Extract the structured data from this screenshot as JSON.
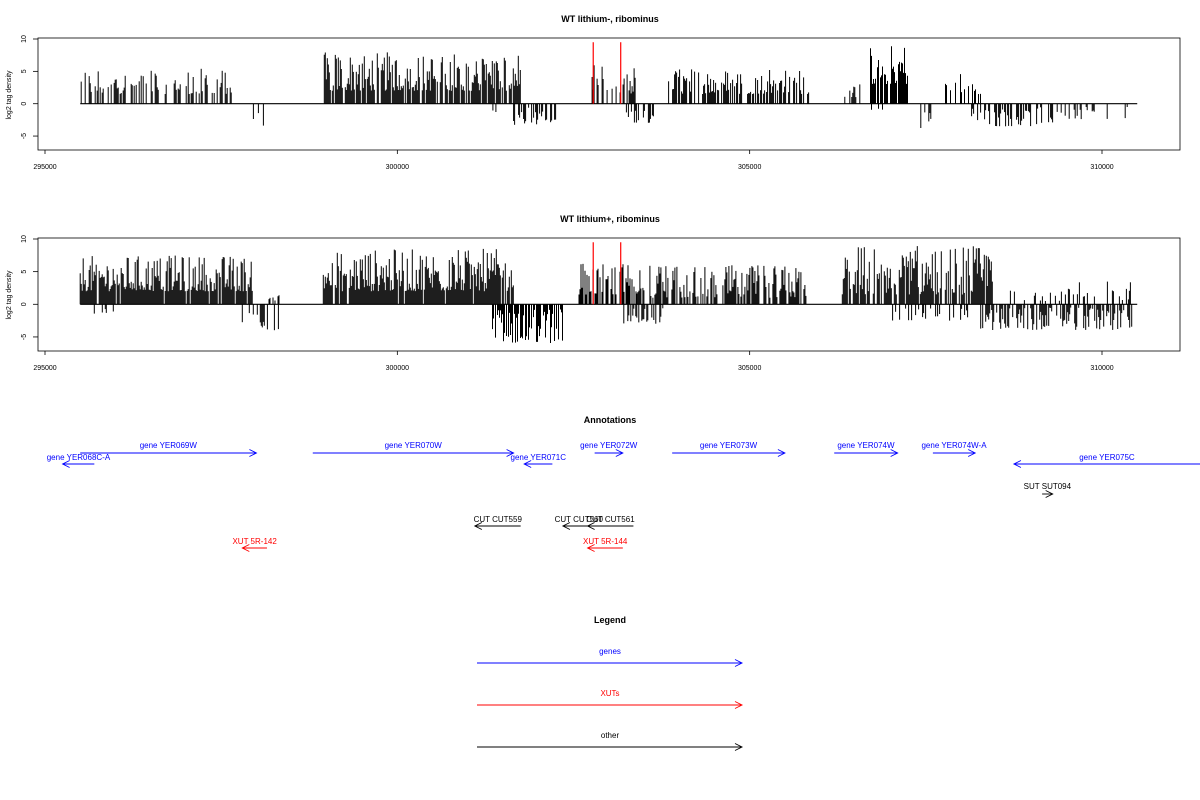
{
  "colors": {
    "gene": "#0000ff",
    "xut": "#ff0000",
    "other": "#000000",
    "highlight": "#ff0000",
    "signal": "#000000"
  },
  "xaxis": {
    "range": [
      295000,
      310500
    ],
    "ticks": [
      295000,
      300000,
      305000,
      310000
    ],
    "tick_labels": [
      "295000",
      "300000",
      "305000",
      "310000"
    ]
  },
  "chart_data": [
    {
      "type": "bar",
      "title": "WT lithium-, ribominus",
      "ylabel": "log2 tag density",
      "ylim": [
        -7,
        10
      ],
      "yticks": [
        -5,
        0,
        5,
        10
      ],
      "ytick_labels": [
        "-5",
        "0",
        "5",
        "10"
      ],
      "highlight_x": [
        302780,
        303170
      ],
      "highlight_height": 9.5,
      "plus_strand_segments": [
        {
          "start": 295500,
          "end": 297650,
          "min": 1.5,
          "max": 5.5,
          "density": 0.45
        },
        {
          "start": 298950,
          "end": 301750,
          "min": 2.0,
          "max": 8.0,
          "density": 0.8
        },
        {
          "start": 302750,
          "end": 303400,
          "min": 1.5,
          "max": 6.0,
          "density": 0.6
        },
        {
          "start": 303850,
          "end": 305850,
          "min": 1.5,
          "max": 5.5,
          "density": 0.55
        },
        {
          "start": 306350,
          "end": 306600,
          "min": 1.0,
          "max": 3.0,
          "density": 0.3
        },
        {
          "start": 306700,
          "end": 307250,
          "min": 3.0,
          "max": 9.5,
          "density": 0.9
        },
        {
          "start": 307750,
          "end": 308300,
          "min": 1.5,
          "max": 5.0,
          "density": 0.45
        }
      ],
      "minus_strand_segments": [
        {
          "start": 297900,
          "end": 298100,
          "min": -3.5,
          "max": -1.0,
          "density": 0.2
        },
        {
          "start": 301300,
          "end": 301400,
          "min": -1.5,
          "max": -1.0,
          "density": 0.2
        },
        {
          "start": 301650,
          "end": 302250,
          "min": -3.5,
          "max": -0.5,
          "density": 0.55
        },
        {
          "start": 303250,
          "end": 303650,
          "min": -3.0,
          "max": -1.0,
          "density": 0.35
        },
        {
          "start": 306700,
          "end": 306900,
          "min": -1.0,
          "max": -0.5,
          "density": 0.2
        },
        {
          "start": 307400,
          "end": 307600,
          "min": -4.0,
          "max": -1.0,
          "density": 0.25
        },
        {
          "start": 308150,
          "end": 309300,
          "min": -3.5,
          "max": -0.5,
          "density": 0.45
        },
        {
          "start": 309350,
          "end": 310400,
          "min": -2.5,
          "max": -0.5,
          "density": 0.25
        }
      ]
    },
    {
      "type": "bar",
      "title": "WT lithium+, ribominus",
      "ylabel": "log2 tag density",
      "ylim": [
        -7,
        10
      ],
      "yticks": [
        -5,
        0,
        5,
        10
      ],
      "ytick_labels": [
        "-5",
        "0",
        "5",
        "10"
      ],
      "highlight_x": [
        302780,
        303170
      ],
      "highlight_height": 9.5,
      "plus_strand_segments": [
        {
          "start": 295500,
          "end": 297950,
          "min": 2.0,
          "max": 7.5,
          "density": 0.9
        },
        {
          "start": 298150,
          "end": 298350,
          "min": 0.5,
          "max": 2.0,
          "density": 0.3
        },
        {
          "start": 298950,
          "end": 301650,
          "min": 2.0,
          "max": 8.5,
          "density": 0.9
        },
        {
          "start": 302550,
          "end": 303400,
          "min": 1.5,
          "max": 6.5,
          "density": 0.7
        },
        {
          "start": 303400,
          "end": 305800,
          "min": 1.0,
          "max": 6.0,
          "density": 0.7
        },
        {
          "start": 306300,
          "end": 308450,
          "min": 1.5,
          "max": 9.0,
          "density": 0.85
        },
        {
          "start": 308700,
          "end": 310450,
          "min": 0.5,
          "max": 3.5,
          "density": 0.25
        }
      ],
      "minus_strand_segments": [
        {
          "start": 295700,
          "end": 296000,
          "min": -1.5,
          "max": -0.5,
          "density": 0.2
        },
        {
          "start": 297800,
          "end": 298150,
          "min": -4.0,
          "max": -0.5,
          "density": 0.4
        },
        {
          "start": 298100,
          "end": 298350,
          "min": -4.0,
          "max": -1.0,
          "density": 0.3
        },
        {
          "start": 301350,
          "end": 302350,
          "min": -6.0,
          "max": -0.5,
          "density": 0.75
        },
        {
          "start": 303200,
          "end": 303800,
          "min": -3.0,
          "max": -0.5,
          "density": 0.4
        },
        {
          "start": 305700,
          "end": 305850,
          "min": -1.5,
          "max": -1.0,
          "density": 0.2
        },
        {
          "start": 307000,
          "end": 308200,
          "min": -2.5,
          "max": -0.5,
          "density": 0.3
        },
        {
          "start": 308250,
          "end": 310450,
          "min": -4.0,
          "max": -0.5,
          "density": 0.6
        }
      ]
    }
  ],
  "annotations": {
    "title": "Annotations",
    "features": [
      {
        "label": "gene YER068C-A",
        "type": "gene",
        "start": 295700,
        "end": 295250,
        "row": 1
      },
      {
        "label": "gene YER069W",
        "type": "gene",
        "start": 295500,
        "end": 298000,
        "row": 0
      },
      {
        "label": "gene YER070W",
        "type": "gene",
        "start": 298800,
        "end": 301650,
        "row": 0
      },
      {
        "label": "gene YER071C",
        "type": "gene",
        "start": 302200,
        "end": 301800,
        "row": 1
      },
      {
        "label": "gene YER072W",
        "type": "gene",
        "start": 302800,
        "end": 303200,
        "row": 0
      },
      {
        "label": "gene YER073W",
        "type": "gene",
        "start": 303900,
        "end": 305500,
        "row": 0
      },
      {
        "label": "gene YER074W",
        "type": "gene",
        "start": 306200,
        "end": 307100,
        "row": 0
      },
      {
        "label": "gene YER074W-A",
        "type": "gene",
        "start": 307600,
        "end": 308200,
        "row": 0
      },
      {
        "label": "gene YER075C",
        "type": "gene",
        "start": 312000,
        "end": 308750,
        "row": 1
      },
      {
        "label": "SUT SUT094",
        "type": "other",
        "start": 309150,
        "end": 309300,
        "row": 3
      },
      {
        "label": "CUT CUT559",
        "type": "other",
        "start": 301750,
        "end": 301100,
        "row": 5
      },
      {
        "label": "CUT CUT560",
        "type": "other",
        "start": 302800,
        "end": 302350,
        "row": 5
      },
      {
        "label": "CUT CUT561",
        "type": "other",
        "start": 303350,
        "end": 302700,
        "row": 5
      },
      {
        "label": "XUT 5R-142",
        "type": "xut",
        "start": 298150,
        "end": 297800,
        "row": 7
      },
      {
        "label": "XUT 5R-144",
        "type": "xut",
        "start": 303200,
        "end": 302700,
        "row": 7
      }
    ]
  },
  "legend": {
    "title": "Legend",
    "items": [
      {
        "label": "genes",
        "type": "gene"
      },
      {
        "label": "XUTs",
        "type": "xut"
      },
      {
        "label": "other",
        "type": "other"
      }
    ]
  }
}
